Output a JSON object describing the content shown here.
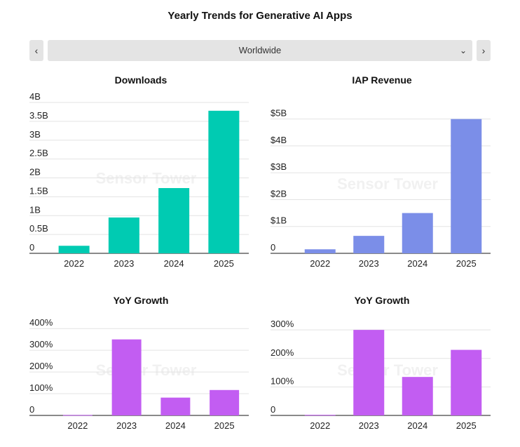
{
  "title": "Yearly Trends for Generative AI Apps",
  "selector": {
    "value": "Worldwide",
    "prev_icon": "chevron-left-icon",
    "next_icon": "chevron-right-icon",
    "dropdown_icon": "chevron-down-icon"
  },
  "watermark": "Sensor Tower",
  "chart_data": [
    {
      "type": "bar",
      "title": "Downloads",
      "categories": [
        "2022",
        "2023",
        "2024",
        "2025"
      ],
      "values": [
        0.2,
        0.95,
        1.73,
        3.78
      ],
      "yticks": [
        "0",
        "0.5B",
        "1B",
        "1.5B",
        "2B",
        "2.5B",
        "3B",
        "3.5B",
        "4B"
      ],
      "ylim": [
        0,
        4
      ],
      "color": "#00cbb2",
      "grid": true
    },
    {
      "type": "bar",
      "title": "IAP Revenue",
      "categories": [
        "2022",
        "2023",
        "2024",
        "2025"
      ],
      "values": [
        0.15,
        0.65,
        1.5,
        5.0
      ],
      "yticks": [
        "0",
        "$1B",
        "$2B",
        "$3B",
        "$4B",
        "$5B"
      ],
      "ylim": [
        0,
        5.2
      ],
      "color": "#7b8ee8",
      "grid": true
    },
    {
      "type": "bar",
      "title": "YoY Growth",
      "categories": [
        "2022",
        "2023",
        "2024",
        "2025"
      ],
      "values": [
        2,
        350,
        82,
        117
      ],
      "yticks": [
        "0",
        "100%",
        "200%",
        "300%",
        "400%"
      ],
      "ylim": [
        0,
        420
      ],
      "color": "#c25df2",
      "grid": true
    },
    {
      "type": "bar",
      "title": "YoY Growth",
      "categories": [
        "2022",
        "2023",
        "2024",
        "2025"
      ],
      "values": [
        2,
        300,
        135,
        230
      ],
      "yticks": [
        "0",
        "100%",
        "200%",
        "300%"
      ],
      "ylim": [
        0,
        320
      ],
      "color": "#c25df2",
      "grid": true
    }
  ]
}
